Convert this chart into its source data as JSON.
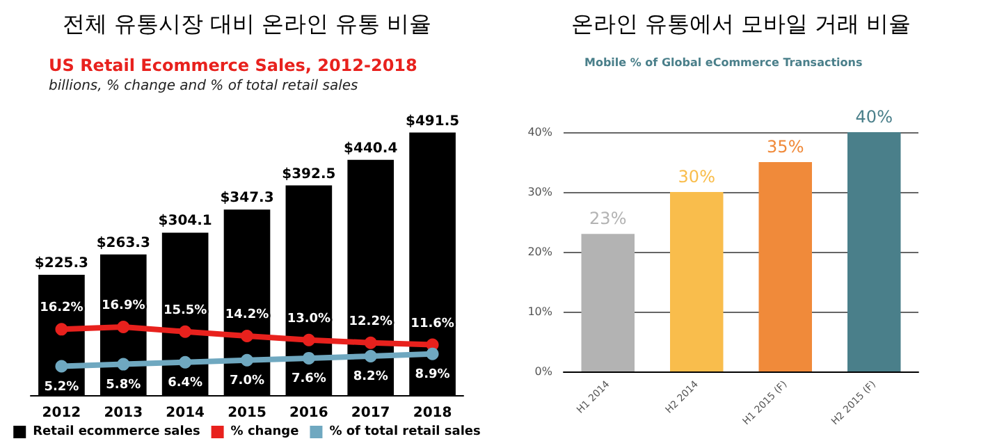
{
  "chart_data": [
    {
      "type": "bar",
      "title": "전체 유통시장 대비 온라인 유통 비율",
      "subtitle": "US Retail Ecommerce Sales, 2012-2018",
      "annotations": [
        "billions, % change and % of total retail sales"
      ],
      "categories": [
        "2012",
        "2013",
        "2014",
        "2015",
        "2016",
        "2017",
        "2018"
      ],
      "series": [
        {
          "name": "Retail ecommerce sales",
          "type": "bar",
          "color": "#000000",
          "values": [
            225.3,
            263.3,
            304.1,
            347.3,
            392.5,
            440.4,
            491.5
          ],
          "value_labels": [
            "$225.3",
            "$263.3",
            "$304.1",
            "$347.3",
            "$392.5",
            "$440.4",
            "$491.5"
          ]
        },
        {
          "name": "% change",
          "type": "line",
          "axis": "y2",
          "color": "#e8211d",
          "values": [
            16.2,
            16.9,
            15.5,
            14.2,
            13.0,
            12.2,
            11.6
          ],
          "value_labels": [
            "16.2%",
            "16.9%",
            "15.5%",
            "14.2%",
            "13.0%",
            "12.2%",
            "11.6%"
          ]
        },
        {
          "name": "% of total retail sales",
          "type": "line",
          "axis": "y2",
          "color": "#6fa8c0",
          "values": [
            5.2,
            5.8,
            6.4,
            7.0,
            7.6,
            8.2,
            8.9
          ],
          "value_labels": [
            "5.2%",
            "5.8%",
            "6.4%",
            "7.0%",
            "7.6%",
            "8.2%",
            "8.9%"
          ]
        }
      ],
      "marker": "circle",
      "legend": "bottom",
      "tick_labels": "x",
      "grid": false
    },
    {
      "type": "bar",
      "title": "온라인 유통에서 모바일 거래 비율",
      "subtitle": "Mobile % of Global eCommerce Transactions",
      "categories": [
        "H1 2014",
        "H2 2014",
        "H1 2015 (F)",
        "H2 2015 (F)"
      ],
      "values": [
        23,
        30,
        35,
        40
      ],
      "colors": [
        "#b3b3b3",
        "#f9bd4c",
        "#f08a3a",
        "#4a7f8a"
      ],
      "value_labels": [
        "23%",
        "30%",
        "35%",
        "40%"
      ],
      "ylim": [
        0,
        40
      ],
      "yticks": [
        {
          "value": 0,
          "label": "0%"
        },
        {
          "value": 10,
          "label": "10%"
        },
        {
          "value": 20,
          "label": "20%"
        },
        {
          "value": 30,
          "label": "30%"
        },
        {
          "value": 40,
          "label": "40%"
        }
      ],
      "grid": "y",
      "legend": false
    }
  ]
}
